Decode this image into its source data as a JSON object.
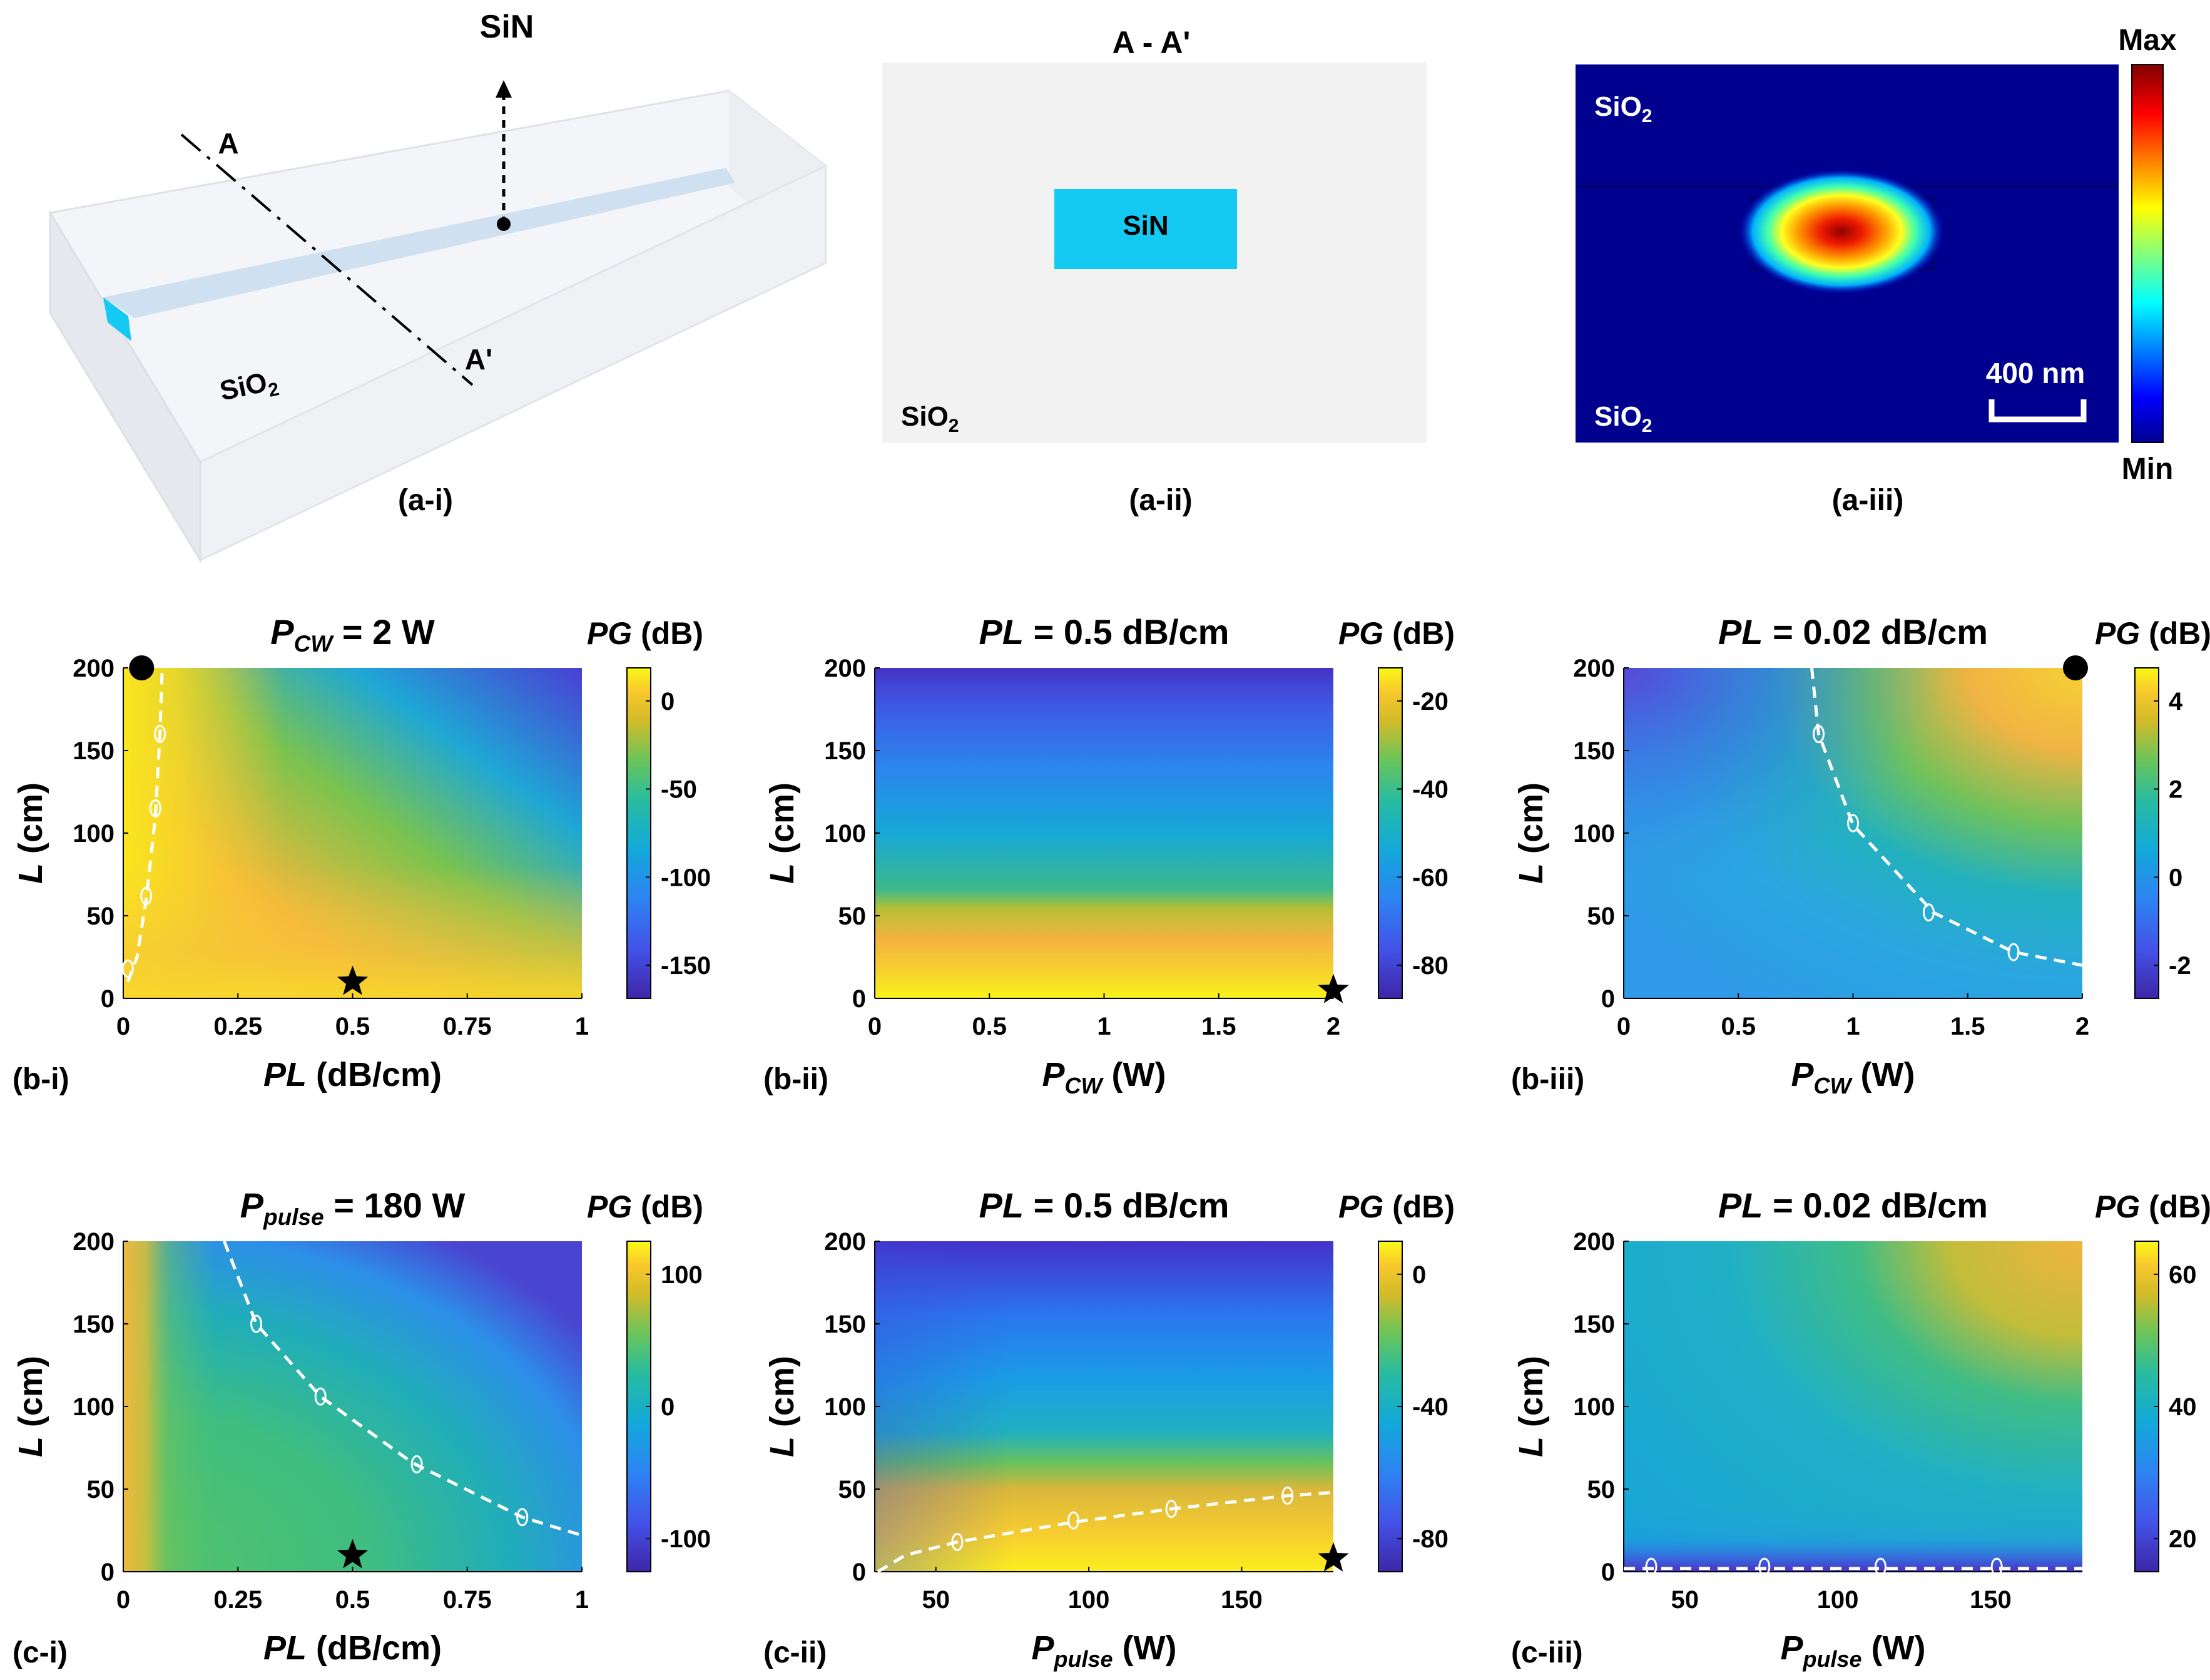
{
  "top": {
    "a1": {
      "sin": "SiN",
      "a": "A",
      "aprime": "A'",
      "sio2": "SiO",
      "sub": "2",
      "caption": "(a-i)"
    },
    "a2": {
      "title": "A - A'",
      "sin": "SiN",
      "sio2": "SiO",
      "sub": "2",
      "caption": "(a-ii)"
    },
    "a3": {
      "sio2_top": "SiO",
      "sio2_bottom": "SiO",
      "sub": "2",
      "scale": "400 nm",
      "max": "Max",
      "min": "Min",
      "caption": "(a-iii)"
    }
  },
  "colors": {
    "waveguide_core": "#14c9f2",
    "cladding": "#f2f2f2",
    "mode_background": "#00008f",
    "contour": "#ffffff"
  },
  "chart_data": [
    {
      "id": "b-i",
      "type": "heatmap",
      "caption": "(b-i)",
      "title_main": "P",
      "title_sub": "CW",
      "title_rest": " = 2 W",
      "xlabel_main": "PL",
      "xlabel_sub": "",
      "xlabel_rest": " (dB/cm)",
      "ylabel": "L",
      "ylabel_rest": " (cm)",
      "xlim": [
        0,
        1
      ],
      "ylim": [
        0,
        200
      ],
      "xticks": [
        0,
        0.25,
        0.5,
        0.75,
        1
      ],
      "xtick_labels": [
        "0",
        "0.25",
        "0.5",
        "0.75",
        "1"
      ],
      "yticks": [
        0,
        50,
        100,
        150,
        200
      ],
      "ytick_labels": [
        "0",
        "50",
        "100",
        "150",
        "200"
      ],
      "colorbar": {
        "label": "PG",
        "unit": " (dB)",
        "ticks": [
          "0",
          "-50",
          "-100",
          "-150"
        ]
      },
      "zero_contour": [
        [
          0.01,
          10
        ],
        [
          0.03,
          25
        ],
        [
          0.05,
          60
        ],
        [
          0.07,
          110
        ],
        [
          0.08,
          160
        ],
        [
          0.085,
          200
        ]
      ],
      "contour_label_points": [
        [
          0.01,
          18
        ],
        [
          0.05,
          62
        ],
        [
          0.07,
          115
        ],
        [
          0.08,
          160
        ]
      ],
      "markers": [
        {
          "shape": "star",
          "x": 0.5,
          "y": 10
        },
        {
          "shape": "dot",
          "x": 0.04,
          "y": 200
        }
      ]
    },
    {
      "id": "b-ii",
      "type": "heatmap",
      "caption": "(b-ii)",
      "title_main": "PL",
      "title_sub": "",
      "title_rest": " = 0.5 dB/cm",
      "xlabel_main": "P",
      "xlabel_sub": "CW",
      "xlabel_rest": " (W)",
      "ylabel": "L",
      "ylabel_rest": " (cm)",
      "xlim": [
        0,
        2
      ],
      "ylim": [
        0,
        200
      ],
      "xticks": [
        0,
        0.5,
        1,
        1.5,
        2
      ],
      "xtick_labels": [
        "0",
        "0.5",
        "1",
        "1.5",
        "2"
      ],
      "yticks": [
        0,
        50,
        100,
        150,
        200
      ],
      "ytick_labels": [
        "0",
        "50",
        "100",
        "150",
        "200"
      ],
      "colorbar": {
        "label": "PG",
        "unit": " (dB)",
        "ticks": [
          "-20",
          "-40",
          "-60",
          "-80"
        ]
      },
      "zero_contour": [],
      "contour_label_points": [],
      "markers": [
        {
          "shape": "star",
          "x": 2,
          "y": 5
        }
      ]
    },
    {
      "id": "b-iii",
      "type": "heatmap",
      "caption": "(b-iii)",
      "title_main": "PL",
      "title_sub": "",
      "title_rest": " = 0.02 dB/cm",
      "xlabel_main": "P",
      "xlabel_sub": "CW",
      "xlabel_rest": " (W)",
      "ylabel": "L",
      "ylabel_rest": " (cm)",
      "xlim": [
        0,
        2
      ],
      "ylim": [
        0,
        200
      ],
      "xticks": [
        0,
        0.5,
        1,
        1.5,
        2
      ],
      "xtick_labels": [
        "0",
        "0.5",
        "1",
        "1.5",
        "2"
      ],
      "yticks": [
        0,
        50,
        100,
        150,
        200
      ],
      "ytick_labels": [
        "0",
        "50",
        "100",
        "150",
        "200"
      ],
      "colorbar": {
        "label": "PG",
        "unit": " (dB)",
        "ticks": [
          "4",
          "2",
          "0",
          "-2"
        ]
      },
      "zero_contour": [
        [
          0.82,
          200
        ],
        [
          0.85,
          160
        ],
        [
          1.0,
          105
        ],
        [
          1.35,
          52
        ],
        [
          1.7,
          28
        ],
        [
          2.0,
          20
        ]
      ],
      "contour_label_points": [
        [
          0.85,
          160
        ],
        [
          1.0,
          106
        ],
        [
          1.33,
          52
        ],
        [
          1.7,
          28
        ]
      ],
      "markers": [
        {
          "shape": "dot",
          "x": 1.97,
          "y": 200
        }
      ]
    },
    {
      "id": "c-i",
      "type": "heatmap",
      "caption": "(c-i)",
      "title_main": "P",
      "title_sub": "pulse",
      "title_rest": " = 180 W",
      "xlabel_main": "PL",
      "xlabel_sub": "",
      "xlabel_rest": " (dB/cm)",
      "ylabel": "L",
      "ylabel_rest": " (cm)",
      "xlim": [
        0,
        1
      ],
      "ylim": [
        0,
        200
      ],
      "xticks": [
        0,
        0.25,
        0.5,
        0.75,
        1
      ],
      "xtick_labels": [
        "0",
        "0.25",
        "0.5",
        "0.75",
        "1"
      ],
      "yticks": [
        0,
        50,
        100,
        150,
        200
      ],
      "ytick_labels": [
        "0",
        "50",
        "100",
        "150",
        "200"
      ],
      "colorbar": {
        "label": "PG",
        "unit": " (dB)",
        "ticks": [
          "100",
          "0",
          "-100"
        ]
      },
      "zero_contour": [
        [
          0.22,
          200
        ],
        [
          0.29,
          150
        ],
        [
          0.43,
          106
        ],
        [
          0.63,
          66
        ],
        [
          0.87,
          33
        ],
        [
          1.0,
          22
        ]
      ],
      "contour_label_points": [
        [
          0.29,
          150
        ],
        [
          0.43,
          106
        ],
        [
          0.64,
          65
        ],
        [
          0.87,
          33
        ]
      ],
      "markers": [
        {
          "shape": "star",
          "x": 0.5,
          "y": 10
        }
      ]
    },
    {
      "id": "c-ii",
      "type": "heatmap",
      "caption": "(c-ii)",
      "title_main": "PL",
      "title_sub": "",
      "title_rest": " = 0.5 dB/cm",
      "xlabel_main": "P",
      "xlabel_sub": "pulse",
      "xlabel_rest": " (W)",
      "ylabel": "L",
      "ylabel_rest": " (cm)",
      "xlim": [
        30,
        180
      ],
      "ylim": [
        0,
        200
      ],
      "xticks": [
        50,
        100,
        150
      ],
      "xtick_labels": [
        "50",
        "100",
        "150"
      ],
      "yticks": [
        0,
        50,
        100,
        150,
        200
      ],
      "ytick_labels": [
        "0",
        "50",
        "100",
        "150",
        "200"
      ],
      "colorbar": {
        "label": "PG",
        "unit": " (dB)",
        "ticks": [
          "0",
          "-40",
          "-80"
        ]
      },
      "zero_contour": [
        [
          31,
          0
        ],
        [
          40,
          10
        ],
        [
          57,
          18
        ],
        [
          95,
          30
        ],
        [
          127,
          38
        ],
        [
          165,
          46
        ],
        [
          180,
          48
        ]
      ],
      "contour_label_points": [
        [
          57,
          18
        ],
        [
          95,
          31
        ],
        [
          127,
          38
        ],
        [
          165,
          46
        ]
      ],
      "markers": [
        {
          "shape": "star",
          "x": 180,
          "y": 8
        }
      ]
    },
    {
      "id": "c-iii",
      "type": "heatmap",
      "caption": "(c-iii)",
      "title_main": "PL",
      "title_sub": "",
      "title_rest": " = 0.02 dB/cm",
      "xlabel_main": "P",
      "xlabel_sub": "pulse",
      "xlabel_rest": " (W)",
      "ylabel": "L",
      "ylabel_rest": " (cm)",
      "xlim": [
        30,
        180
      ],
      "ylim": [
        0,
        200
      ],
      "xticks": [
        50,
        100,
        150
      ],
      "xtick_labels": [
        "50",
        "100",
        "150"
      ],
      "yticks": [
        0,
        50,
        100,
        150,
        200
      ],
      "ytick_labels": [
        "0",
        "50",
        "100",
        "150",
        "200"
      ],
      "colorbar": {
        "label": "PG",
        "unit": " (dB)",
        "ticks": [
          "60",
          "40",
          "20"
        ]
      },
      "zero_contour": [
        [
          30,
          2
        ],
        [
          180,
          2
        ]
      ],
      "contour_label_points": [
        [
          39,
          3
        ],
        [
          76,
          3
        ],
        [
          114,
          3
        ],
        [
          152,
          3
        ]
      ],
      "markers": []
    }
  ]
}
